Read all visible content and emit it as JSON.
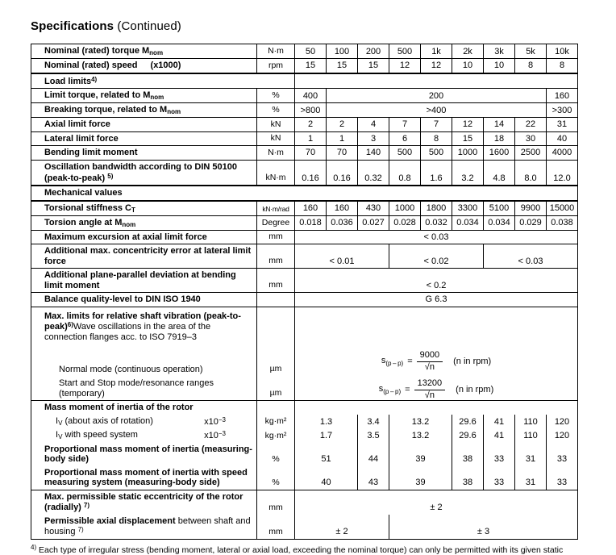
{
  "page": {
    "title": "Specifications",
    "subtitle": "(Continued)"
  },
  "formulas": [
    {
      "lead": "s",
      "sub": "(p – p)",
      "eq": "=",
      "num": "9000",
      "rad": "√",
      "varname": "n",
      "note": "(n in rpm)"
    },
    {
      "lead": "s",
      "sub": "(p – p)",
      "eq": "=",
      "num": "13200",
      "rad": "√",
      "varname": "n",
      "note": "(n in rpm)"
    }
  ],
  "footnote": {
    "marker": "4)",
    "text": "Each type of irregular stress (bending moment, lateral or axial load, exceeding the nominal torque) can only be permitted with its given static"
  },
  "table": {
    "columns": [
      "50",
      "100",
      "200",
      "500",
      "1k",
      "2k",
      "3k",
      "5k",
      "10k"
    ],
    "rows": [
      {
        "name": "row-nominal-torque",
        "label": [
          [
            "b",
            "Nominal (rated) torque M"
          ],
          [
            "bsub",
            "nom"
          ]
        ],
        "unit": "N·m",
        "vals": [
          "50",
          "100",
          "200",
          "500",
          "1k",
          "2k",
          "3k",
          "5k",
          "10k"
        ]
      },
      {
        "name": "row-nominal-speed",
        "label": [
          [
            "b",
            "Nominal (rated) speed"
          ],
          [
            "bgap",
            "(x1000)"
          ]
        ],
        "unit": "rpm",
        "vals": [
          "15",
          "15",
          "15",
          "12",
          "12",
          "10",
          "10",
          "8",
          "8"
        ]
      },
      {
        "name": "row-load-limits",
        "t2": true,
        "label": [
          [
            "b",
            "Load limits"
          ],
          [
            "bsup",
            "4)"
          ]
        ],
        "labelSpan": 2,
        "unit": null,
        "vals": [
          {
            "t": "",
            "s": 9
          }
        ]
      },
      {
        "name": "row-limit-torque",
        "label": [
          [
            "b",
            "Limit torque, related to M"
          ],
          [
            "bsub",
            "nom"
          ]
        ],
        "unit": "%",
        "vals": [
          "400",
          {
            "t": "200",
            "s": 7
          },
          "160"
        ]
      },
      {
        "name": "row-breaking-torque",
        "label": [
          [
            "b",
            "Breaking torque, related to M"
          ],
          [
            "bsub",
            "nom"
          ]
        ],
        "unit": "%",
        "vals": [
          ">800",
          {
            "t": ">400",
            "s": 7
          },
          ">300"
        ]
      },
      {
        "name": "row-axial-limit-force",
        "label": [
          [
            "b",
            "Axial limit force"
          ]
        ],
        "unit": "kN",
        "vals": [
          "2",
          "2",
          "4",
          "7",
          "7",
          "12",
          "14",
          "22",
          "31"
        ]
      },
      {
        "name": "row-lateral-limit-force",
        "label": [
          [
            "b",
            "Lateral limit force"
          ]
        ],
        "unit": "kN",
        "vals": [
          "1",
          "1",
          "3",
          "6",
          "8",
          "15",
          "18",
          "30",
          "40"
        ]
      },
      {
        "name": "row-bending-limit-moment",
        "label": [
          [
            "b",
            "Bending limit moment"
          ]
        ],
        "unit": "N·m",
        "vals": [
          "70",
          "70",
          "140",
          "500",
          "500",
          "1000",
          "1600",
          "2500",
          "4000"
        ]
      },
      {
        "name": "row-oscillation-bandwidth",
        "label": [
          [
            "b",
            "Oscillation bandwidth according to DIN 50100 (peak-to-peak) "
          ],
          [
            "bsup",
            "5)"
          ]
        ],
        "unit": "kN·m",
        "vals": [
          "0.16",
          "0.16",
          "0.32",
          "0.8",
          "1.6",
          "3.2",
          "4.8",
          "8.0",
          "12.0"
        ]
      },
      {
        "name": "row-mechanical-values",
        "t2": true,
        "section": [
          [
            "b",
            "Mechanical values"
          ]
        ]
      },
      {
        "name": "row-torsional-stiffness",
        "t2": true,
        "label": [
          [
            "b",
            "Torsional stiffness C"
          ],
          [
            "bsub",
            "T"
          ]
        ],
        "unit": "kN·m/rad",
        "unitCls": "small",
        "vals": [
          "160",
          "160",
          "430",
          "1000",
          "1800",
          "3300",
          "5100",
          "9900",
          "15000"
        ]
      },
      {
        "name": "row-torsion-angle",
        "label": [
          [
            "b",
            "Torsion angle at M"
          ],
          [
            "bsub",
            "nom"
          ]
        ],
        "unit": "Degree",
        "vals": [
          "0.018",
          "0.036",
          "0.027",
          "0.028",
          "0.032",
          "0.034",
          "0.034",
          "0.029",
          "0.038"
        ]
      },
      {
        "name": "row-max-excursion",
        "label": [
          [
            "b",
            "Maximum excursion at axial limit force"
          ]
        ],
        "unit": "mm",
        "vals": [
          {
            "t": "< 0.03",
            "s": 9
          }
        ]
      },
      {
        "name": "row-concentricity-error",
        "label": [
          [
            "b",
            "Additional max. concentricity error at lateral limit force"
          ]
        ],
        "unit": "mm",
        "vals": [
          {
            "t": "< 0.01",
            "s": 3
          },
          {
            "t": "< 0.02",
            "s": 3
          },
          {
            "t": "< 0.03",
            "s": 3
          }
        ]
      },
      {
        "name": "row-plane-parallel-deviation",
        "label": [
          [
            "b",
            "Additional plane-parallel deviation at bending limit moment"
          ]
        ],
        "unit": "mm",
        "vals": [
          {
            "t": "< 0.2",
            "s": 9
          }
        ]
      },
      {
        "name": "row-balance-quality",
        "label": [
          [
            "b",
            "Balance quality-level to DIN ISO 1940"
          ]
        ],
        "unit": "",
        "vals": [
          {
            "t": "G 6.3",
            "s": 9
          }
        ]
      },
      {
        "name": "row-shaft-vibration-header",
        "labelCls": "vibhead",
        "label": [
          [
            "b",
            "Max. limits for relative shaft vibration (peak-to-peak)"
          ],
          [
            "bsup",
            "6)"
          ],
          [
            "n",
            "Wave oscillations in the area of the connection flanges acc. to ISO 7919–3"
          ]
        ],
        "unit": "",
        "formulaCell": true
      },
      {
        "name": "row-normal-mode",
        "hid": true,
        "tall": true,
        "labelCls": "ind2",
        "label": [
          [
            "n",
            "Normal mode (continuous operation)"
          ]
        ],
        "unit": "µm"
      },
      {
        "name": "row-start-stop-mode",
        "hid": true,
        "tall": true,
        "labelCls": "ind2",
        "label": [
          [
            "n",
            "Start and Stop mode/resonance ranges (temporary)"
          ]
        ],
        "unit": "µm"
      },
      {
        "name": "row-mass-moment-header",
        "label": [
          [
            "b",
            "Mass moment of inertia of the rotor"
          ]
        ],
        "unit": "",
        "vals": [
          {
            "t": "",
            "s": 9
          }
        ]
      },
      {
        "name": "row-inertia-rotation-axis",
        "hid": true,
        "labelCls": "ind1",
        "label": [
          [
            "n",
            "I"
          ],
          [
            "nsub",
            "V"
          ],
          [
            "n",
            " (about axis of rotation)"
          ]
        ],
        "labelRight": [
          [
            "n",
            "x10"
          ],
          [
            "nsup",
            "−3"
          ]
        ],
        "unit": "kg·m²",
        "vals": [
          {
            "t": "1.3",
            "s": 2
          },
          "3.4",
          {
            "t": "13.2",
            "s": 2
          },
          "29.6",
          "41",
          "110",
          "120"
        ]
      },
      {
        "name": "row-inertia-speed-system",
        "hid": true,
        "labelCls": "ind1",
        "label": [
          [
            "n",
            "I"
          ],
          [
            "nsub",
            "V"
          ],
          [
            "n",
            " with speed system"
          ]
        ],
        "labelRight": [
          [
            "n",
            "x10"
          ],
          [
            "nsup",
            "−3"
          ]
        ],
        "unit": "kg·m²",
        "vals": [
          {
            "t": "1.7",
            "s": 2
          },
          "3.5",
          {
            "t": "13.2",
            "s": 2
          },
          "29.6",
          "41",
          "110",
          "120"
        ]
      },
      {
        "name": "row-proportional-inertia",
        "hid": true,
        "label": [
          [
            "b",
            "Proportional mass moment of inertia (measuring-body side)"
          ]
        ],
        "unit": "%",
        "vals": [
          {
            "t": "51",
            "s": 2
          },
          "44",
          {
            "t": "39",
            "s": 2
          },
          "38",
          "33",
          "31",
          "33"
        ]
      },
      {
        "name": "row-proportional-inertia-speed",
        "hid": true,
        "label": [
          [
            "b",
            "Proportional mass moment of inertia with speed measuring system (measuring-body side)"
          ]
        ],
        "unit": "%",
        "vals": [
          {
            "t": "40",
            "s": 2
          },
          "43",
          {
            "t": "39",
            "s": 2
          },
          "38",
          "33",
          "31",
          "33"
        ]
      },
      {
        "name": "row-static-eccentricity",
        "label": [
          [
            "b",
            "Max. permissible static eccentricity of the rotor (radially) "
          ],
          [
            "bsup",
            "7)"
          ]
        ],
        "unit": "mm",
        "vals": [
          {
            "t": "± 2",
            "s": 9
          }
        ]
      },
      {
        "name": "row-axial-displacement",
        "hid": true,
        "label": [
          [
            "b",
            "Permissible axial displacement "
          ],
          [
            "n",
            "between shaft and housing "
          ],
          [
            "nsup",
            "7)"
          ]
        ],
        "unit": "mm",
        "vals": [
          {
            "t": "± 2",
            "s": 3
          },
          {
            "t": "± 3",
            "s": 6
          }
        ]
      }
    ]
  }
}
